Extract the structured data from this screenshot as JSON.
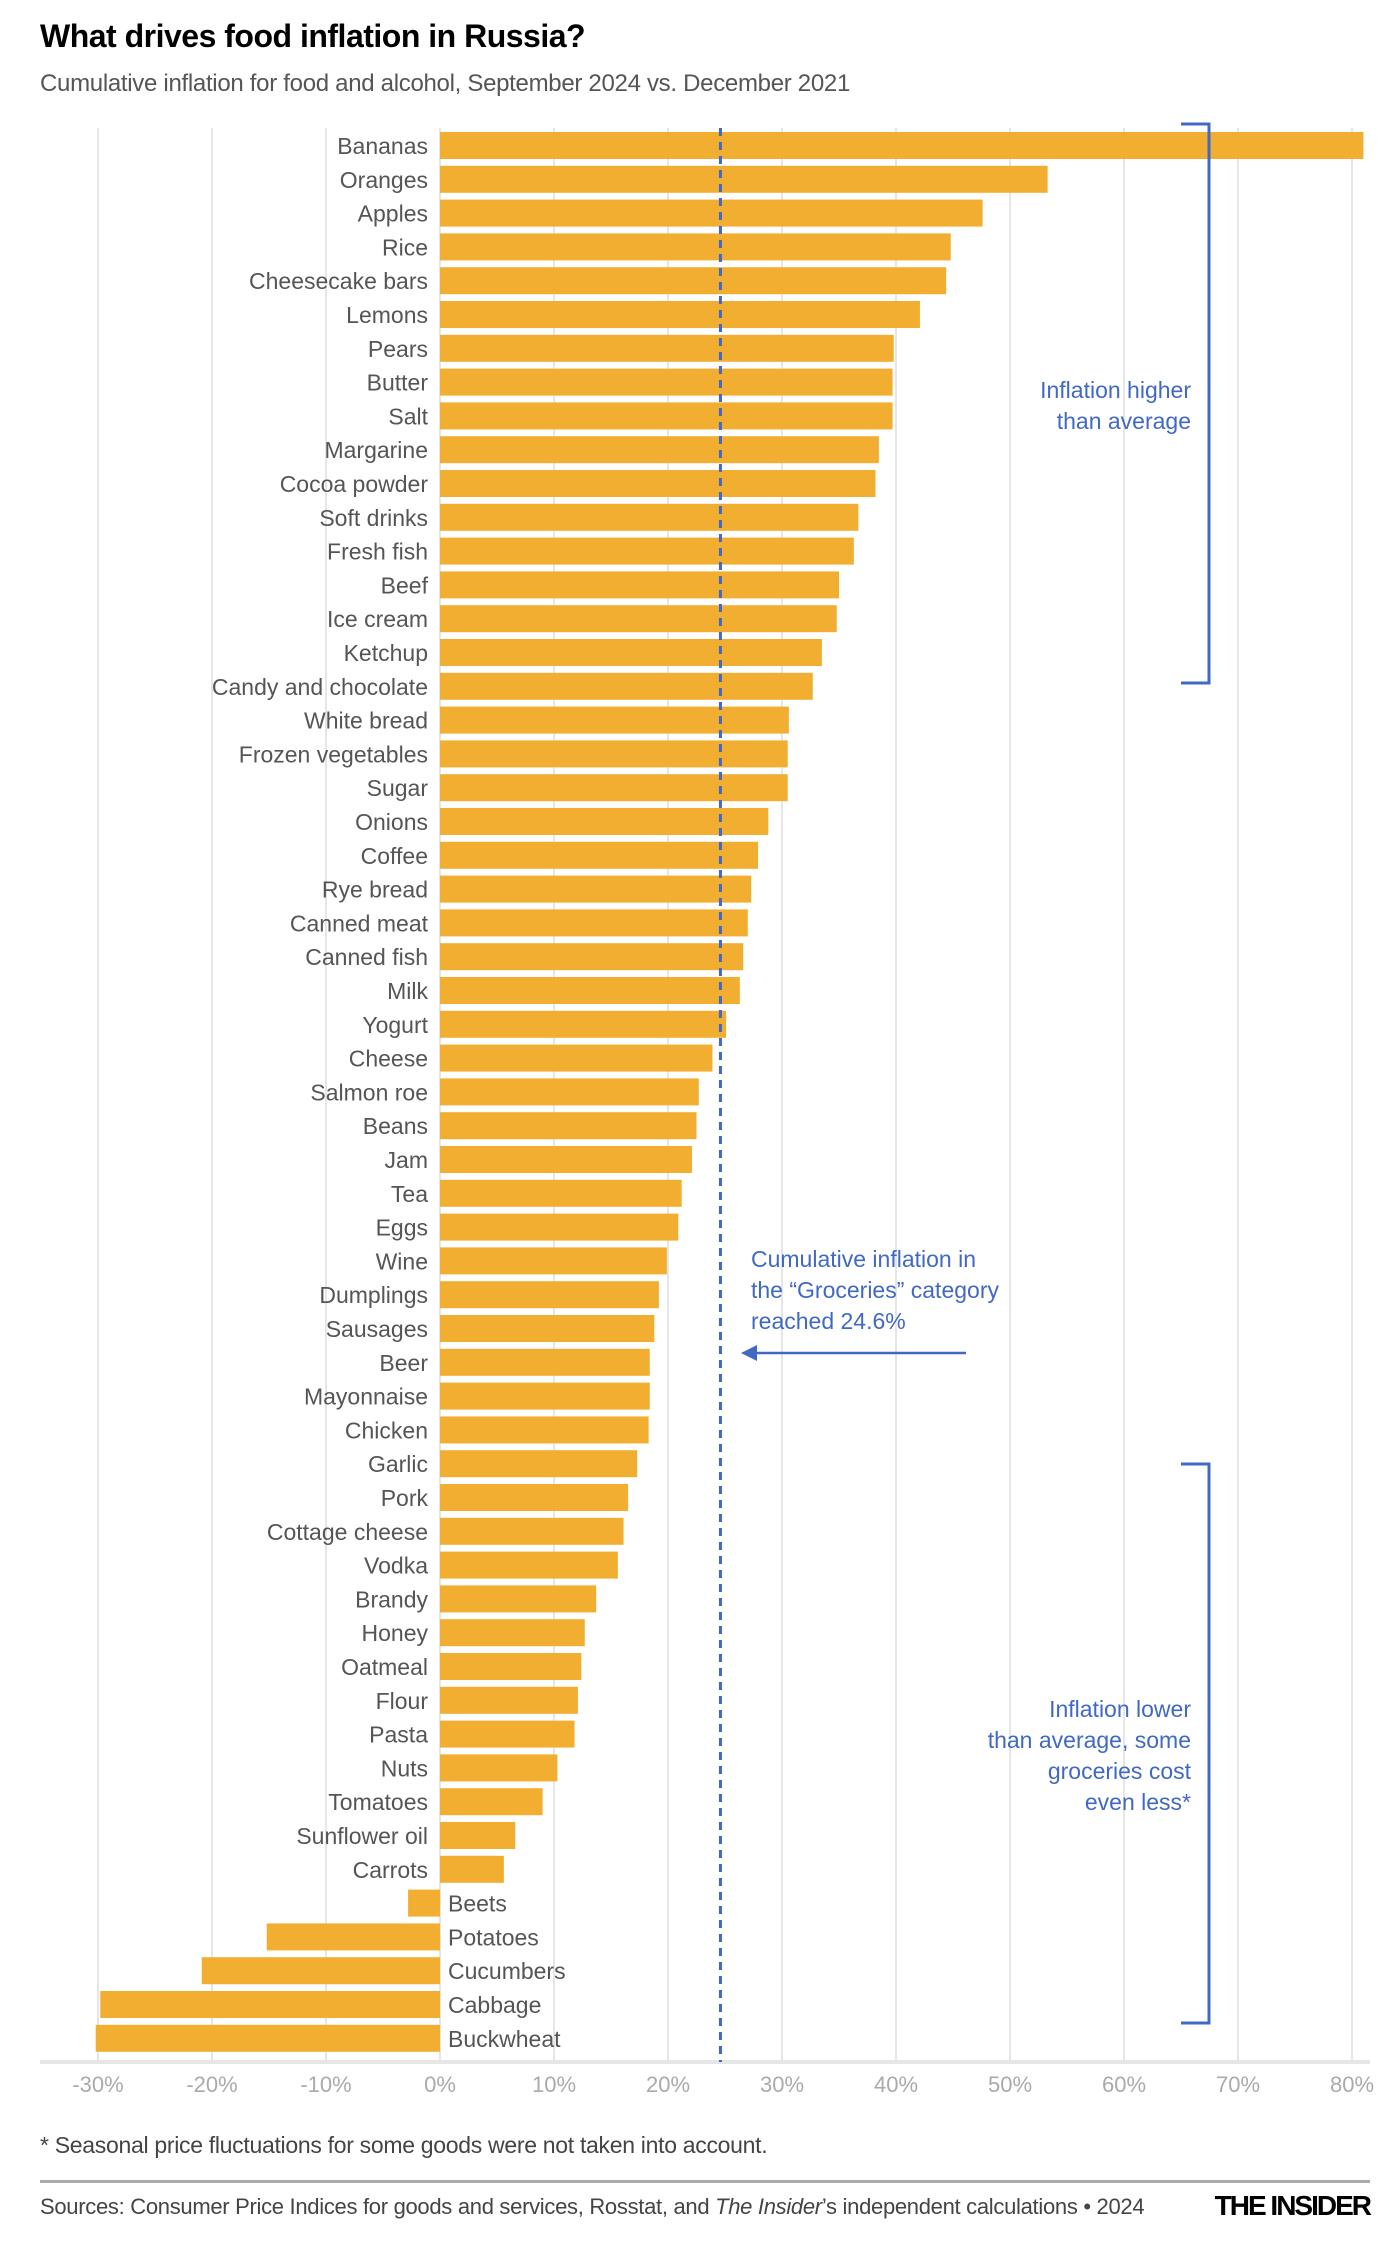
{
  "chart_data": {
    "type": "bar",
    "orientation": "horizontal",
    "title": "What drives food inflation in Russia?",
    "subtitle": "Cumulative inflation for food and alcohol, September 2024 vs. December 2021",
    "categories": [
      "Bananas",
      "Oranges",
      "Apples",
      "Rice",
      "Cheesecake bars",
      "Lemons",
      "Pears",
      "Butter",
      "Salt",
      "Margarine",
      "Cocoa powder",
      "Soft drinks",
      "Fresh fish",
      "Beef",
      "Ice cream",
      "Ketchup",
      "Candy and chocolate",
      "White bread",
      "Frozen vegetables",
      "Sugar",
      "Onions",
      "Coffee",
      "Rye bread",
      "Canned meat",
      "Canned fish",
      "Milk",
      "Yogurt",
      "Cheese",
      "Salmon roe",
      "Beans",
      "Jam",
      "Tea",
      "Eggs",
      "Wine",
      "Dumplings",
      "Sausages",
      "Beer",
      "Mayonnaise",
      "Chicken",
      "Garlic",
      "Pork",
      "Cottage cheese",
      "Vodka",
      "Brandy",
      "Honey",
      "Oatmeal",
      "Flour",
      "Pasta",
      "Nuts",
      "Tomatoes",
      "Sunflower oil",
      "Carrots",
      "Beets",
      "Potatoes",
      "Cucumbers",
      "Cabbage",
      "Buckwheat"
    ],
    "values": [
      81.0,
      53.3,
      47.6,
      44.8,
      44.4,
      42.1,
      39.8,
      39.7,
      39.7,
      38.5,
      38.2,
      36.7,
      36.3,
      35.0,
      34.8,
      33.5,
      32.7,
      30.6,
      30.5,
      30.5,
      28.8,
      27.9,
      27.3,
      27.0,
      26.6,
      26.3,
      25.1,
      23.9,
      22.7,
      22.5,
      22.1,
      21.2,
      20.9,
      19.9,
      19.2,
      18.8,
      18.4,
      18.4,
      18.3,
      17.3,
      16.5,
      16.1,
      15.6,
      13.7,
      12.7,
      12.4,
      12.1,
      11.8,
      10.3,
      9.0,
      6.6,
      5.6,
      -2.8,
      -15.2,
      -20.9,
      -29.8,
      -30.2
    ],
    "xlim": [
      -30,
      80
    ],
    "xticks": [
      -30,
      -20,
      -10,
      0,
      10,
      20,
      30,
      40,
      50,
      60,
      70,
      80
    ],
    "xtick_labels": [
      "-30%",
      "-20%",
      "-10%",
      "0%",
      "10%",
      "20%",
      "30%",
      "40%",
      "50%",
      "60%",
      "70%",
      "80%"
    ],
    "grid": true,
    "reference_line": {
      "value": 24.6,
      "style": "dashed"
    },
    "annotations": {
      "higher": [
        "Inflation higher",
        "than average"
      ],
      "average": [
        "Cumulative inflation in",
        "the “Groceries” category",
        "reached 24.6%"
      ],
      "lower": [
        "Inflation lower",
        "than average, some",
        "groceries cost",
        "even less*"
      ]
    },
    "colors": {
      "bar": "#f2ae30",
      "accent": "#4169c4",
      "grid": "#e6e6e6"
    }
  },
  "footnote": "* Seasonal price fluctuations for some goods were not taken into account.",
  "sources": {
    "prefix": "Sources: Consumer Price Indices for goods and services, Rosstat, and ",
    "italic": "The Insider",
    "suffix": "’s independent calculations • 2024"
  },
  "logo": "THE INSIDER"
}
